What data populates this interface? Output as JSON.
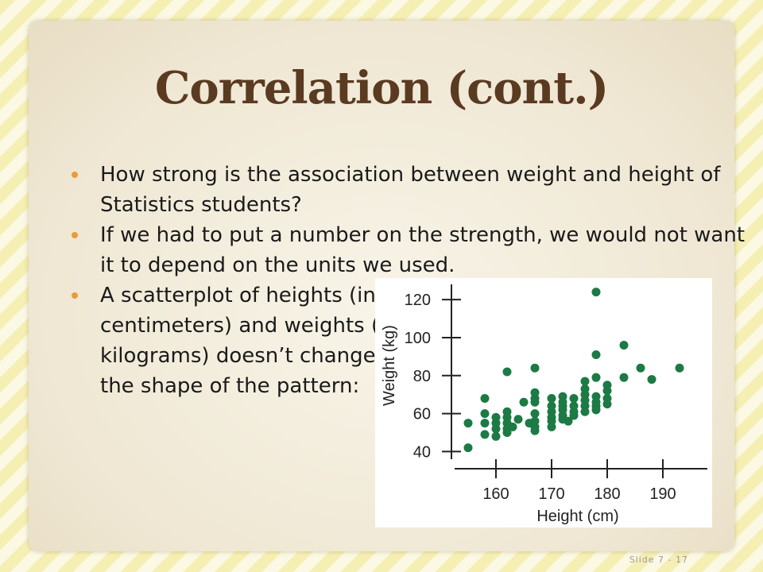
{
  "slide": {
    "title": "Correlation (cont.)",
    "bullets": [
      "How strong is the association between weight and height of Statistics students?",
      "If we had to put a number on the strength, we would not want it to depend on the units we used.",
      "A scatterplot of heights (in centimeters) and weights (in kilograms) doesn’t change the shape of the pattern:"
    ],
    "footer": "Slide 7 - 17"
  },
  "colors": {
    "point": "#1c7a44",
    "title": "#5b3a22",
    "bullet_dot": "#e89a3c"
  },
  "chart_data": {
    "type": "scatter",
    "xlabel": "Height (cm)",
    "ylabel": "Weight (kg)",
    "xlim": [
      152,
      198
    ],
    "ylim": [
      36,
      128
    ],
    "xticks": [
      160,
      170,
      180,
      190
    ],
    "yticks": [
      40,
      60,
      80,
      100,
      120
    ],
    "grid": false,
    "points": [
      [
        155,
        42
      ],
      [
        155,
        55
      ],
      [
        158,
        49
      ],
      [
        158,
        55
      ],
      [
        158,
        60
      ],
      [
        158,
        68
      ],
      [
        160,
        48
      ],
      [
        160,
        52
      ],
      [
        160,
        55
      ],
      [
        160,
        58
      ],
      [
        162,
        50
      ],
      [
        162,
        52
      ],
      [
        162,
        55
      ],
      [
        162,
        58
      ],
      [
        162,
        61
      ],
      [
        162,
        82
      ],
      [
        163,
        53
      ],
      [
        164,
        57
      ],
      [
        165,
        66
      ],
      [
        166,
        55
      ],
      [
        167,
        51
      ],
      [
        167,
        53
      ],
      [
        167,
        56
      ],
      [
        167,
        60
      ],
      [
        167,
        66
      ],
      [
        167,
        68
      ],
      [
        167,
        71
      ],
      [
        167,
        84
      ],
      [
        170,
        53
      ],
      [
        170,
        56
      ],
      [
        170,
        58
      ],
      [
        170,
        61
      ],
      [
        170,
        64
      ],
      [
        170,
        68
      ],
      [
        172,
        57
      ],
      [
        172,
        59
      ],
      [
        172,
        62
      ],
      [
        172,
        64
      ],
      [
        172,
        66
      ],
      [
        172,
        69
      ],
      [
        173,
        56
      ],
      [
        174,
        59
      ],
      [
        174,
        61
      ],
      [
        174,
        64
      ],
      [
        174,
        68
      ],
      [
        176,
        61
      ],
      [
        176,
        64
      ],
      [
        176,
        67
      ],
      [
        176,
        70
      ],
      [
        176,
        73
      ],
      [
        176,
        77
      ],
      [
        178,
        62
      ],
      [
        178,
        64
      ],
      [
        178,
        66
      ],
      [
        178,
        69
      ],
      [
        178,
        79
      ],
      [
        178,
        91
      ],
      [
        178,
        124
      ],
      [
        180,
        65
      ],
      [
        180,
        68
      ],
      [
        180,
        72
      ],
      [
        180,
        75
      ],
      [
        183,
        79
      ],
      [
        183,
        96
      ],
      [
        186,
        84
      ],
      [
        188,
        78
      ],
      [
        193,
        84
      ]
    ]
  }
}
